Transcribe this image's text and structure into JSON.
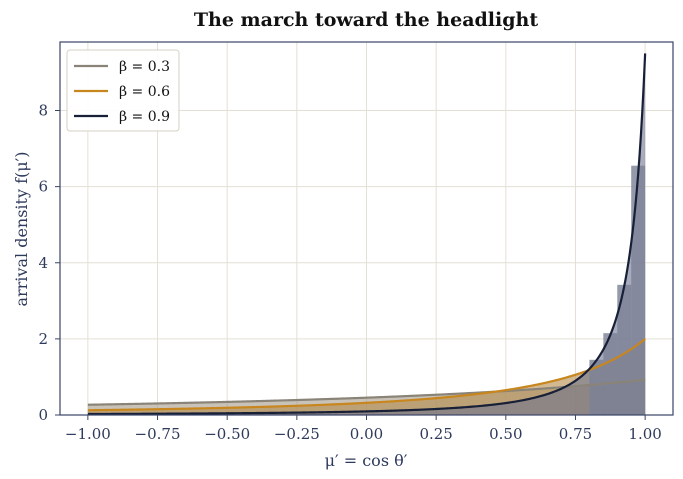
{
  "chart_data": {
    "type": "line",
    "title": "The march toward the headlight",
    "xlabel": "μ′ = cos θ′",
    "ylabel": "arrival density f(μ′)",
    "xlim": [
      -1.1,
      1.1
    ],
    "ylim": [
      0,
      9.8
    ],
    "x_ticks": [
      -1.0,
      -0.75,
      -0.5,
      -0.25,
      0.0,
      0.25,
      0.5,
      0.75,
      1.0
    ],
    "x_tick_labels": [
      "−1.00",
      "−0.75",
      "−0.50",
      "−0.25",
      "0.00",
      "0.25",
      "0.50",
      "0.75",
      "1.00"
    ],
    "y_ticks": [
      0,
      2,
      4,
      6,
      8
    ],
    "y_tick_labels": [
      "0",
      "2",
      "4",
      "6",
      "8"
    ],
    "grid": true,
    "legend_position": "top-left",
    "series": [
      {
        "name": "β = 0.3",
        "beta": 0.3,
        "color": "#8a8478",
        "fill": "#a39a88"
      },
      {
        "name": "β = 0.6",
        "beta": 0.6,
        "color": "#c8861e",
        "fill": "#b58a4a"
      },
      {
        "name": "β = 0.9",
        "beta": 0.9,
        "color": "#182038",
        "fill": "#6e7590"
      }
    ],
    "histogram": {
      "color": "#7a8196",
      "bin_width": 0.05,
      "bins": [
        {
          "x": 0.8,
          "value": 1.45
        },
        {
          "x": 0.85,
          "value": 2.15
        },
        {
          "x": 0.9,
          "value": 3.42
        },
        {
          "x": 0.95,
          "value": 6.55
        }
      ]
    }
  }
}
